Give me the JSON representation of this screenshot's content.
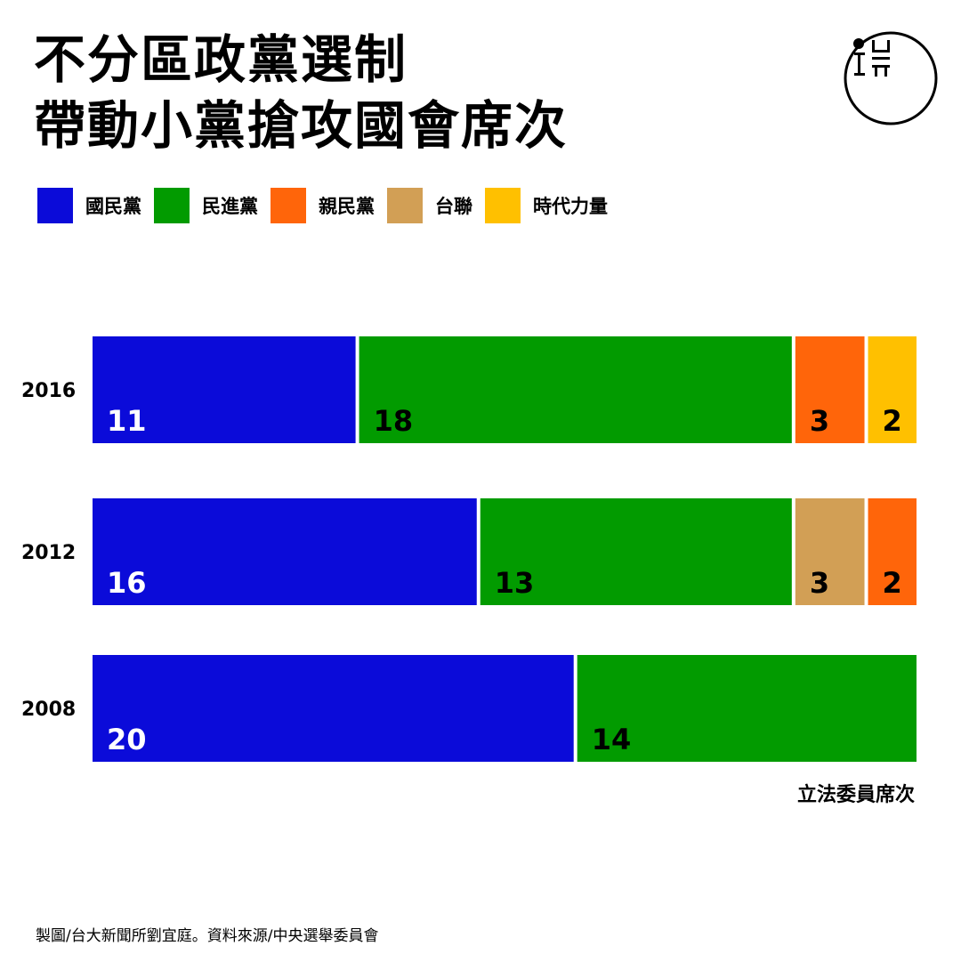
{
  "title": {
    "line1": "不分區政黨選制",
    "line2": "帶動小黨搶攻國會席次"
  },
  "colors": {
    "kmt": "#0b0bd9",
    "dpp": "#029b00",
    "pfp": "#ff650a",
    "tsu": "#d29f55",
    "npp": "#ffc000",
    "white_text": "#ffffff",
    "dark_text": "#000000"
  },
  "legend": [
    {
      "label": "國民黨",
      "color": "#0b0bd9"
    },
    {
      "label": "民進黨",
      "color": "#029b00"
    },
    {
      "label": "親民黨",
      "color": "#ff650a"
    },
    {
      "label": "台聯",
      "color": "#d29f55"
    },
    {
      "label": "時代力量",
      "color": "#ffc000"
    }
  ],
  "chart_data": {
    "type": "bar",
    "orientation": "horizontal",
    "stacked": true,
    "categories": [
      "2016",
      "2012",
      "2008"
    ],
    "series": [
      {
        "name": "國民黨",
        "color": "#0b0bd9",
        "values": [
          11,
          16,
          20
        ]
      },
      {
        "name": "民進黨",
        "color": "#029b00",
        "values": [
          18,
          13,
          14
        ]
      },
      {
        "name": "台聯",
        "color": "#d29f55",
        "values": [
          0,
          3,
          0
        ]
      },
      {
        "name": "親民黨",
        "color": "#ff650a",
        "values": [
          3,
          2,
          0
        ]
      },
      {
        "name": "時代力量",
        "color": "#ffc000",
        "values": [
          2,
          0,
          0
        ]
      }
    ],
    "segment_order": [
      [
        "國民黨",
        "民進黨",
        "親民黨",
        "時代力量"
      ],
      [
        "國民黨",
        "民進黨",
        "台聯",
        "親民黨"
      ],
      [
        "國民黨",
        "民進黨"
      ]
    ],
    "total_seats": 34,
    "xlabel": "立法委員席次",
    "xlim": [
      0,
      34
    ],
    "grid": false,
    "legend_position": "top-left"
  },
  "footer": "製圖/台大新聞所劉宜庭。資料來源/中央選舉委員會"
}
